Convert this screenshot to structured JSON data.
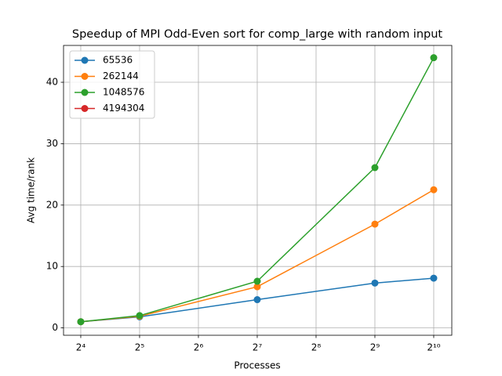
{
  "chart_data": {
    "type": "line",
    "title": "Speedup of MPI Odd-Even sort for comp_large with random input",
    "x_label": "Processes",
    "y_label": "Avg time/rank",
    "x": [
      16,
      32,
      128,
      512,
      1024
    ],
    "series": [
      {
        "name": "65536",
        "color": "#1f77b4",
        "values": [
          1.0,
          1.8,
          4.6,
          7.3,
          8.1
        ]
      },
      {
        "name": "262144",
        "color": "#ff7f0e",
        "values": [
          1.0,
          1.9,
          6.7,
          16.9,
          22.5
        ]
      },
      {
        "name": "1048576",
        "color": "#2ca02c",
        "values": [
          1.0,
          2.0,
          7.6,
          26.1,
          44.0
        ]
      },
      {
        "name": "4194304",
        "color": "#d62728",
        "values": [
          null,
          null,
          null,
          null,
          null
        ]
      }
    ],
    "xscale": "log2",
    "xlim": [
      13.06,
      1267
    ],
    "xticks": [
      {
        "value": 16,
        "label": "2⁴"
      },
      {
        "value": 32,
        "label": "2⁵"
      },
      {
        "value": 64,
        "label": "2⁶"
      },
      {
        "value": 128,
        "label": "2⁷"
      },
      {
        "value": 256,
        "label": "2⁸"
      },
      {
        "value": 512,
        "label": "2⁹"
      },
      {
        "value": 1024,
        "label": "2¹⁰"
      }
    ],
    "ylim": [
      -1.2,
      46.0
    ],
    "yticks": [
      0,
      10,
      20,
      30,
      40
    ],
    "grid": true,
    "legend": "upper left"
  }
}
